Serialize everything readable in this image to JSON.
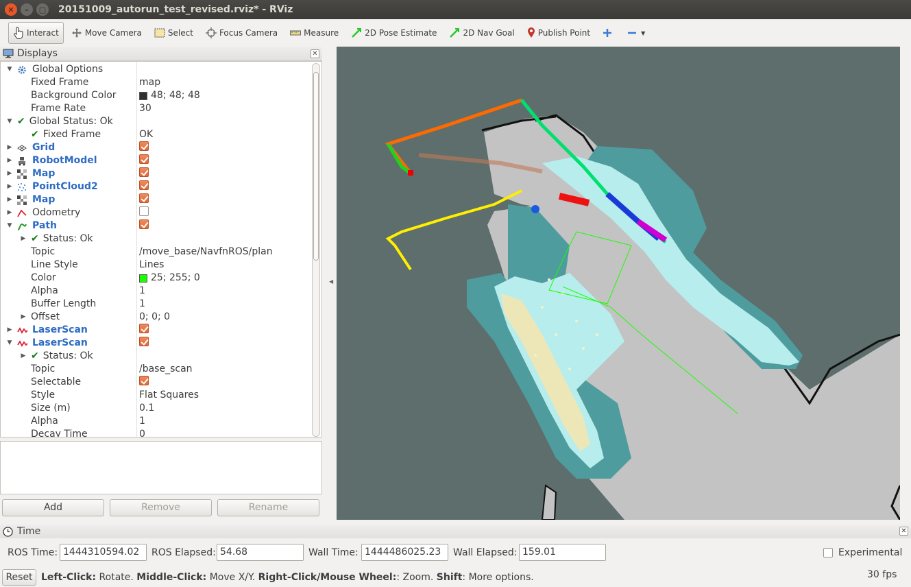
{
  "window": {
    "title": "20151009_autorun_test_revised.rviz* - RViz"
  },
  "toolbar": {
    "interact": "Interact",
    "move_camera": "Move Camera",
    "select": "Select",
    "focus_camera": "Focus Camera",
    "measure": "Measure",
    "pose_estimate": "2D Pose Estimate",
    "nav_goal": "2D Nav Goal",
    "publish_point": "Publish Point"
  },
  "displays": {
    "title": "Displays",
    "rows": [
      {
        "name": "Global Options",
        "value": ""
      },
      {
        "name": "Fixed Frame",
        "value": "map"
      },
      {
        "name": "Background Color",
        "value": "48; 48; 48"
      },
      {
        "name": "Frame Rate",
        "value": "30"
      },
      {
        "name": "Global Status: Ok",
        "value": ""
      },
      {
        "name": "Fixed Frame",
        "value": "OK"
      },
      {
        "name": "Grid",
        "value": ""
      },
      {
        "name": "RobotModel",
        "value": ""
      },
      {
        "name": "Map",
        "value": ""
      },
      {
        "name": "PointCloud2",
        "value": ""
      },
      {
        "name": "Map",
        "value": ""
      },
      {
        "name": "Odometry",
        "value": ""
      },
      {
        "name": "Path",
        "value": ""
      },
      {
        "name": "Status: Ok",
        "value": ""
      },
      {
        "name": "Topic",
        "value": "/move_base/NavfnROS/plan"
      },
      {
        "name": "Line Style",
        "value": "Lines"
      },
      {
        "name": "Color",
        "value": "25; 255; 0"
      },
      {
        "name": "Alpha",
        "value": "1"
      },
      {
        "name": "Buffer Length",
        "value": "1"
      },
      {
        "name": "Offset",
        "value": "0; 0; 0"
      },
      {
        "name": "LaserScan",
        "value": ""
      },
      {
        "name": "LaserScan",
        "value": ""
      },
      {
        "name": "Status: Ok",
        "value": ""
      },
      {
        "name": "Topic",
        "value": "/base_scan"
      },
      {
        "name": "Selectable",
        "value": ""
      },
      {
        "name": "Style",
        "value": "Flat Squares"
      },
      {
        "name": "Size (m)",
        "value": "0.1"
      },
      {
        "name": "Alpha",
        "value": "1"
      },
      {
        "name": "Decay Time",
        "value": "0"
      }
    ],
    "add": "Add",
    "remove": "Remove",
    "rename": "Rename"
  },
  "colors": {
    "background_swatch": "#303030",
    "path_swatch": "#19ff00",
    "accent": "#2e6cc4"
  },
  "time": {
    "title": "Time",
    "ros_time_label": "ROS Time:",
    "ros_time": "1444310594.02",
    "ros_elapsed_label": "ROS Elapsed:",
    "ros_elapsed": "54.68",
    "wall_time_label": "Wall Time:",
    "wall_time": "1444486025.23",
    "wall_elapsed_label": "Wall Elapsed:",
    "wall_elapsed": "159.01",
    "experimental": "Experimental"
  },
  "status": {
    "reset": "Reset",
    "k1": "Left-Click:",
    "t1": "Rotate.",
    "k2": "Middle-Click:",
    "t2": "Move X/Y.",
    "k3": "Right-Click/Mouse Wheel:",
    "t3": ": Zoom.",
    "k4": "Shift",
    "t4": ": More options.",
    "fps": "30 fps"
  }
}
